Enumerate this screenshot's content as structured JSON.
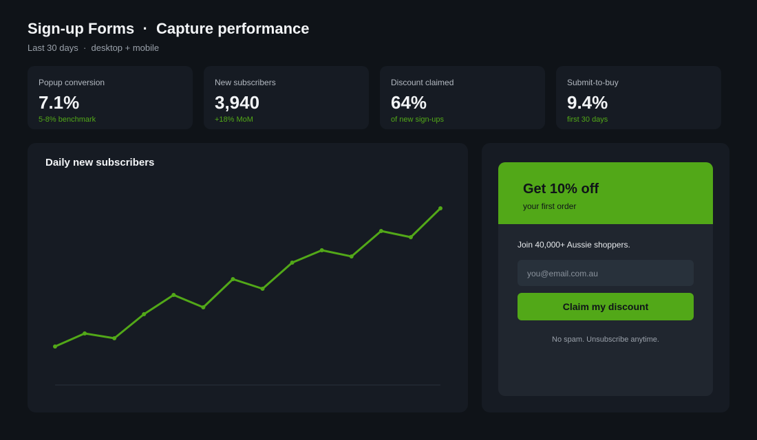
{
  "header": {
    "title": "Sign-up Forms  ·  Capture performance",
    "subtitle": "Last 30 days  ·  desktop + mobile"
  },
  "kpis": [
    {
      "label": "Popup conversion",
      "value": "7.1%",
      "note": "5-8% benchmark"
    },
    {
      "label": "New subscribers",
      "value": "3,940",
      "note": "+18% MoM"
    },
    {
      "label": "Discount claimed",
      "value": "64%",
      "note": "of new sign-ups"
    },
    {
      "label": "Submit-to-buy",
      "value": "9.4%",
      "note": "first 30 days"
    }
  ],
  "chart_data": {
    "type": "line",
    "title": "Daily new subscribers",
    "values": [
      56,
      75,
      68,
      103,
      131,
      113,
      154,
      140,
      178,
      196,
      187,
      224,
      215,
      257
    ],
    "color": "#52a818",
    "ylim": [
      0,
      300
    ]
  },
  "signup": {
    "headline": "Get 10% off",
    "subhead": "your first order",
    "pitch": "Join 40,000+ Aussie shoppers.",
    "placeholder": "you@email.com.au",
    "button": "Claim my discount",
    "footnote": "No spam. Unsubscribe anytime."
  }
}
